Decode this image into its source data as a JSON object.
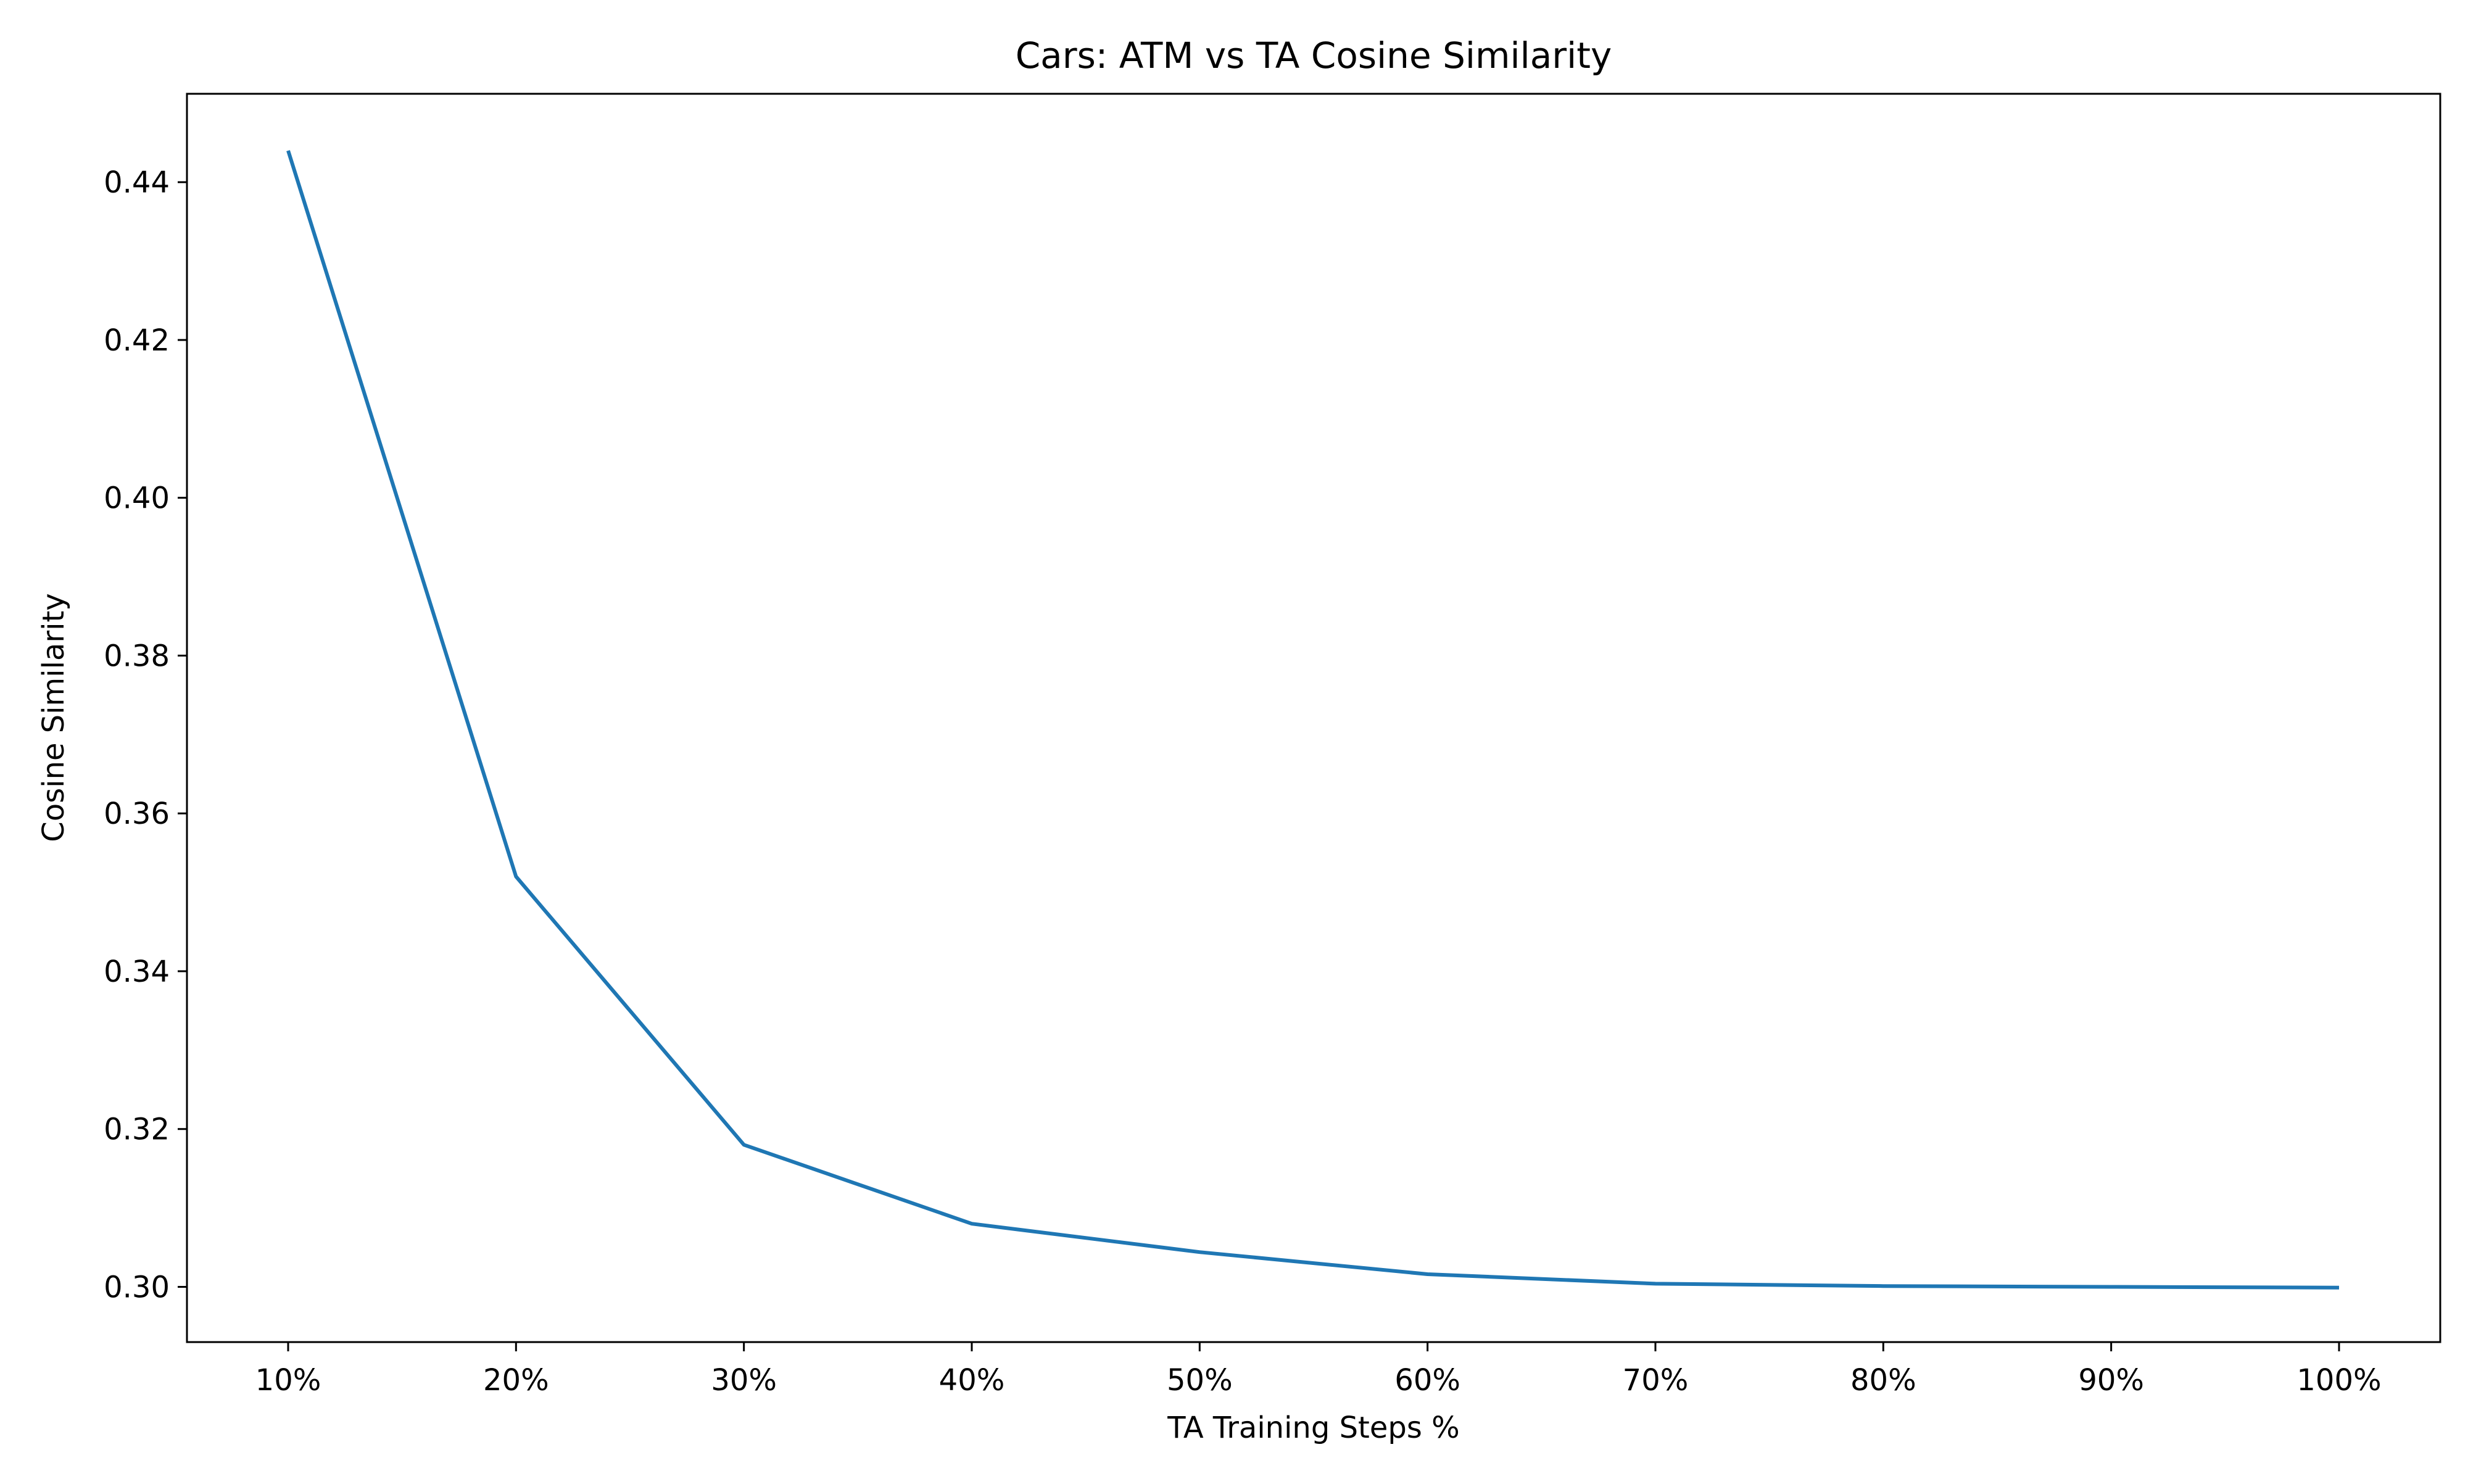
{
  "chart_data": {
    "type": "line",
    "title": "Cars: ATM vs TA Cosine Similarity",
    "xlabel": "TA Training Steps %",
    "ylabel": "Cosine Similarity",
    "categories": [
      "10%",
      "20%",
      "30%",
      "40%",
      "50%",
      "60%",
      "70%",
      "80%",
      "90%",
      "100%"
    ],
    "series": [
      {
        "color": "#1f77b4",
        "values": [
          0.444,
          0.352,
          0.318,
          0.308,
          0.3044,
          0.3016,
          0.3004,
          0.3001,
          0.3,
          0.2999
        ]
      }
    ],
    "ylim": [
      0.293,
      0.4512
    ],
    "yticks": [
      0.3,
      0.32,
      0.34,
      0.36,
      0.38,
      0.4,
      0.42,
      0.44
    ],
    "ytick_labels": [
      "0.30",
      "0.32",
      "0.34",
      "0.36",
      "0.38",
      "0.40",
      "0.42",
      "0.44"
    ],
    "grid": false,
    "legend": "none"
  }
}
